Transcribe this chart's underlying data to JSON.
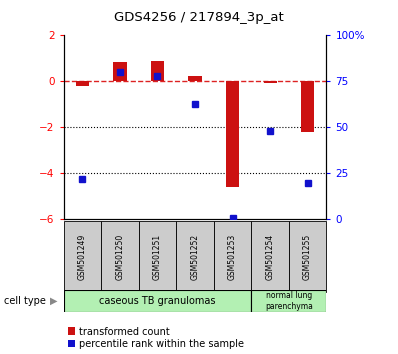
{
  "title": "GDS4256 / 217894_3p_at",
  "samples": [
    "GSM501249",
    "GSM501250",
    "GSM501251",
    "GSM501252",
    "GSM501253",
    "GSM501254",
    "GSM501255"
  ],
  "transformed_count": [
    -0.2,
    0.85,
    0.9,
    0.25,
    -4.6,
    -0.05,
    -2.2
  ],
  "percentile_rank": [
    22,
    80,
    78,
    63,
    1,
    48,
    20
  ],
  "ylim_left": [
    -6,
    2
  ],
  "ylim_right": [
    0,
    100
  ],
  "yticks_left": [
    2,
    0,
    -2,
    -4,
    -6
  ],
  "yticks_right": [
    100,
    75,
    50,
    25,
    0
  ],
  "ytick_labels_right": [
    "100%",
    "75",
    "50",
    "25",
    "0"
  ],
  "bar_color": "#cc1111",
  "dot_color": "#1111cc",
  "hline_color": "#dd2222",
  "dotted_lines": [
    -2,
    -4
  ],
  "background_color": "#ffffff",
  "plot_bg_color": "#ffffff",
  "tick_bg_color": "#cccccc",
  "green_color": "#b3f0b3",
  "cell_type_label": "cell type"
}
